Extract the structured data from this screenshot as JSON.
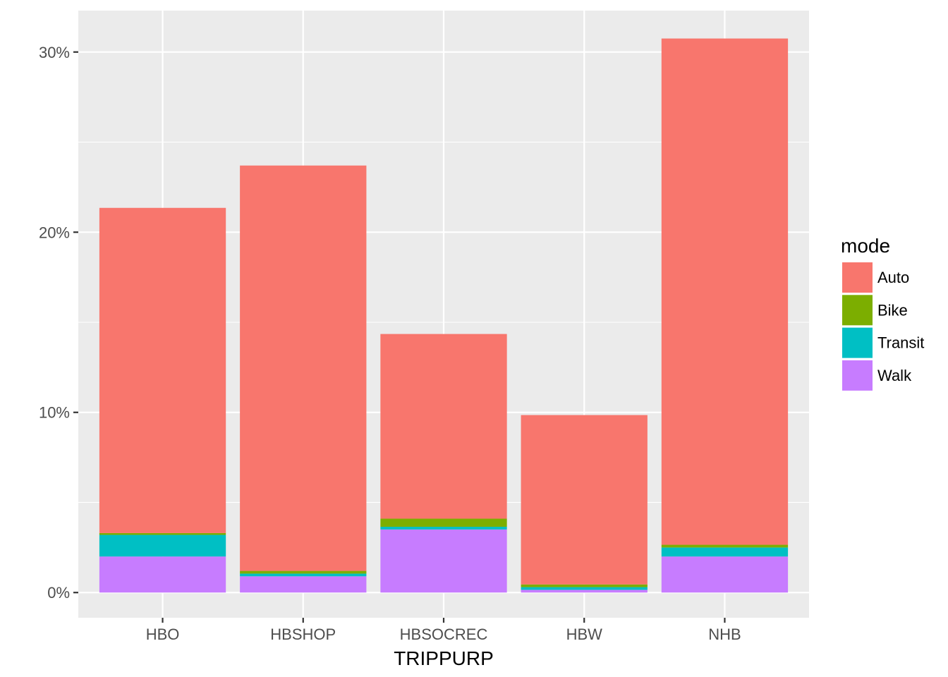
{
  "chart_data": {
    "type": "bar",
    "stacked": true,
    "categories": [
      "HBO",
      "HBSHOP",
      "HBSOCREC",
      "HBW",
      "NHB"
    ],
    "series": [
      {
        "name": "Walk",
        "color": "#C77CFF",
        "values": [
          2.0,
          0.9,
          3.5,
          0.15,
          2.0
        ]
      },
      {
        "name": "Transit",
        "color": "#00BFC4",
        "values": [
          1.2,
          0.15,
          0.15,
          0.15,
          0.5
        ]
      },
      {
        "name": "Bike",
        "color": "#7CAE00",
        "values": [
          0.1,
          0.15,
          0.45,
          0.15,
          0.15
        ]
      },
      {
        "name": "Auto",
        "color": "#F8766D",
        "values": [
          18.05,
          22.5,
          10.25,
          9.4,
          28.1
        ]
      }
    ],
    "xlabel": "TRIPPURP",
    "ylabel": "",
    "ylim": [
      -1.4,
      32.3
    ],
    "yticks": [
      0,
      10,
      20,
      30
    ],
    "ytick_labels": [
      "0%",
      "10%",
      "20%",
      "30%"
    ],
    "grid": true,
    "legend": {
      "title": "mode",
      "position": "right",
      "items": [
        "Auto",
        "Bike",
        "Transit",
        "Walk"
      ]
    },
    "colors": {
      "panel_background": "#EBEBEB",
      "grid_major": "#FFFFFF",
      "tick_text": "#4D4D4D"
    }
  }
}
